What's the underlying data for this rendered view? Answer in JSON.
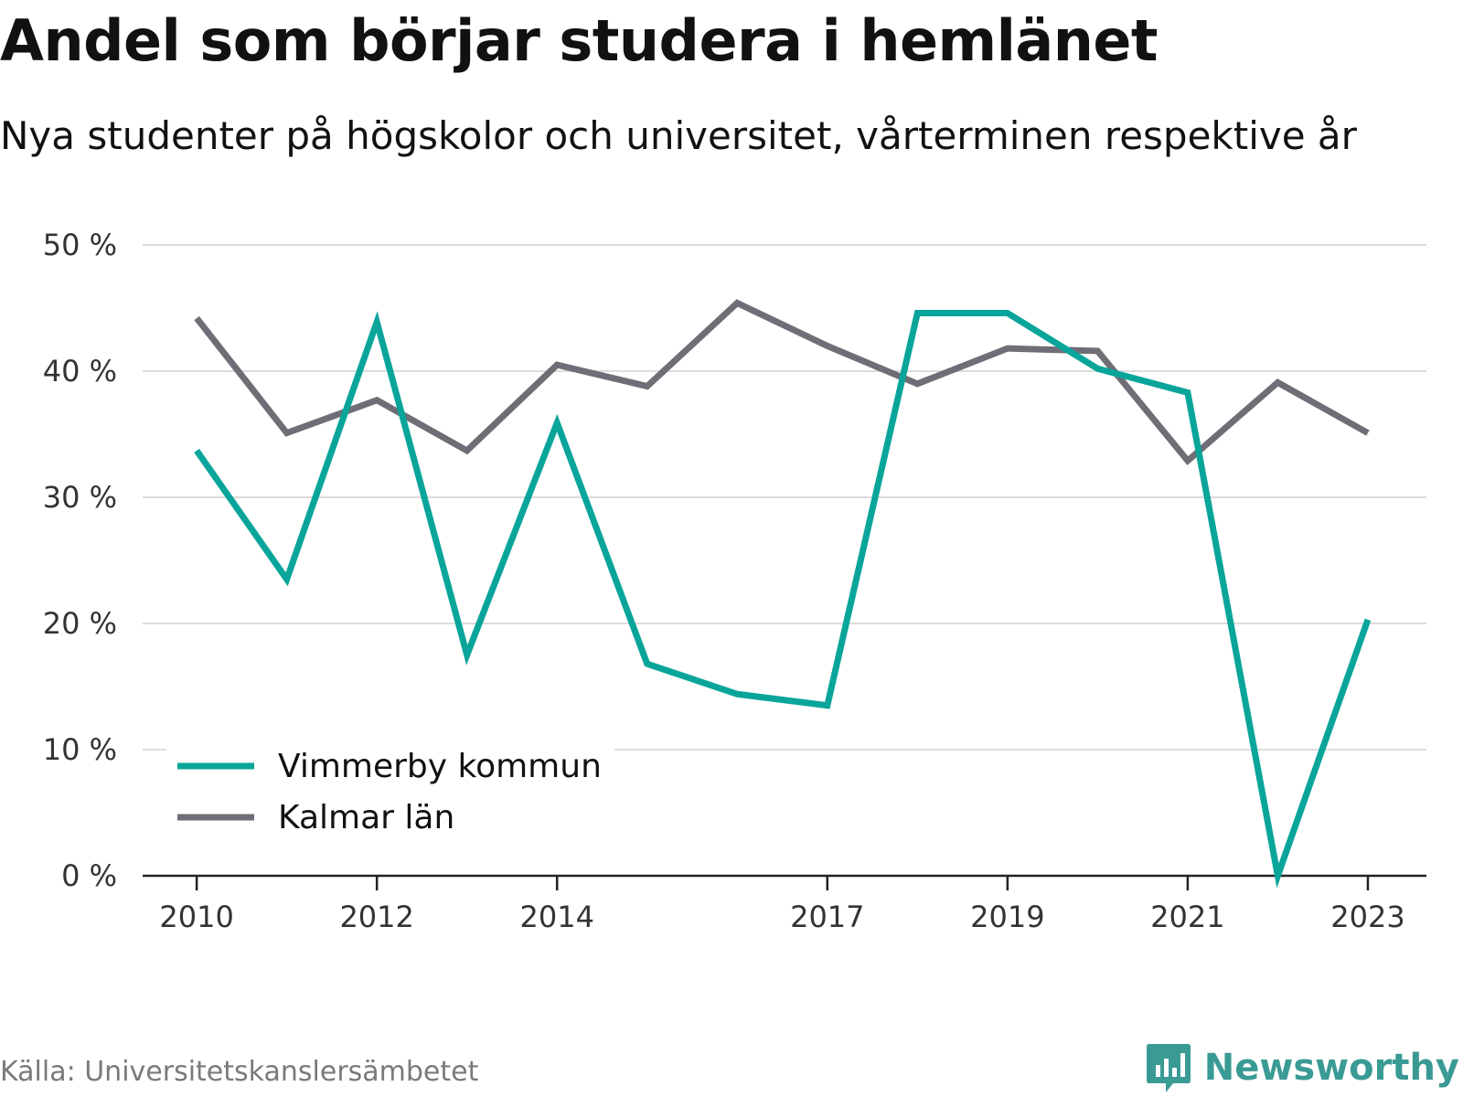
{
  "header": {
    "title": "Andel som börjar studera i hemlänet",
    "subtitle": "Nya studenter på högskolor och universitet, vårterminen respektive år"
  },
  "chart_data": {
    "type": "line",
    "x": [
      2010,
      2011,
      2012,
      2013,
      2014,
      2015,
      2016,
      2017,
      2018,
      2019,
      2020,
      2021,
      2022,
      2023
    ],
    "x_tick_labels": [
      "2010",
      "2012",
      "2014",
      "2017",
      "2019",
      "2021",
      "2023"
    ],
    "x_tick_values": [
      2010,
      2012,
      2014,
      2017,
      2019,
      2021,
      2023
    ],
    "xlim": [
      2009.4,
      2023.65
    ],
    "ylim": [
      0,
      50
    ],
    "y_ticks": [
      0,
      10,
      20,
      30,
      40,
      50
    ],
    "y_tick_labels": [
      "0 %",
      "10 %",
      "20 %",
      "30 %",
      "40 %",
      "50 %"
    ],
    "grid": true,
    "legend_position": "bottom-left",
    "series": [
      {
        "name": "Vimmerby kommun",
        "color": "#0aa59a",
        "values": [
          33.7,
          23.5,
          43.9,
          17.5,
          35.9,
          16.8,
          14.4,
          13.5,
          44.6,
          44.6,
          40.2,
          38.3,
          0.0,
          20.3
        ]
      },
      {
        "name": "Kalmar län",
        "color": "#6f6e76",
        "values": [
          44.2,
          35.1,
          37.7,
          33.7,
          40.5,
          38.8,
          45.4,
          42.0,
          39.0,
          41.8,
          41.6,
          32.9,
          39.1,
          35.1
        ]
      }
    ]
  },
  "footer": {
    "source": "Källa: Universitetskanslersämbetet",
    "brand": "Newsworthy",
    "brand_color": "#3a9a94"
  }
}
